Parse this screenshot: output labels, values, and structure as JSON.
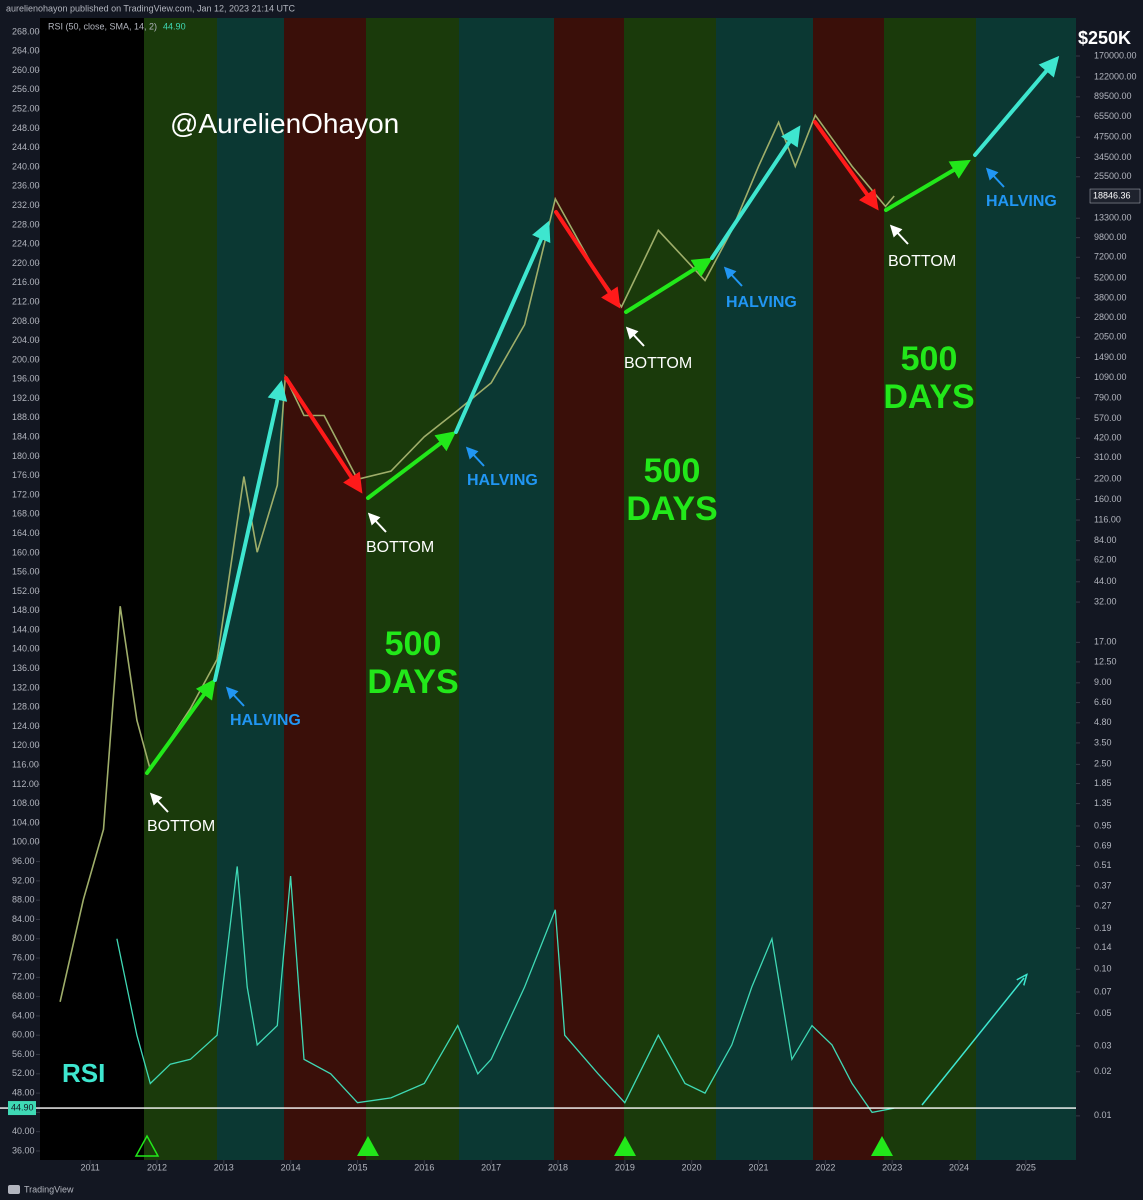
{
  "header": {
    "publisher": "aurelienohayon published on TradingView.com, Jan 12, 2023 21:14 UTC",
    "footer": "TradingView"
  },
  "chart_data": {
    "type": "line",
    "title": "@AurelienOhayon",
    "annotations": {
      "target": "$250K",
      "halving": [
        "HALVING",
        "HALVING",
        "HALVING",
        "HALVING"
      ],
      "bottom": [
        "BOTTOM",
        "BOTTOM",
        "BOTTOM",
        "BOTTOM"
      ],
      "days": [
        "500\nDAYS",
        "500\nDAYS",
        "500\nDAYS"
      ],
      "rsi": "RSI"
    },
    "xlim": [
      2010.25,
      2025.75
    ],
    "xticks": [
      2011,
      2012,
      2013,
      2014,
      2015,
      2016,
      2017,
      2018,
      2019,
      2020,
      2021,
      2022,
      2023,
      2024,
      2025
    ],
    "ylim": [
      34.13,
      270.07
    ],
    "yticks": [
      {
        "value": 36,
        "label": "36.00"
      },
      {
        "value": 40,
        "label": "40.00"
      },
      {
        "value": 44,
        "label": "44.00"
      },
      {
        "value": 48,
        "label": "48.00"
      },
      {
        "value": 52,
        "label": "52.00"
      },
      {
        "value": 56,
        "label": "56.00"
      },
      {
        "value": 60,
        "label": "60.00"
      },
      {
        "value": 64,
        "label": "64.00"
      },
      {
        "value": 68,
        "label": "68.00"
      },
      {
        "value": 72,
        "label": "72.00"
      },
      {
        "value": 76,
        "label": "76.00"
      },
      {
        "value": 80,
        "label": "80.00"
      },
      {
        "value": 84,
        "label": "84.00"
      },
      {
        "value": 88,
        "label": "88.00"
      },
      {
        "value": 92,
        "label": "92.00"
      },
      {
        "value": 96,
        "label": "96.00"
      },
      {
        "value": 100,
        "label": "100.00"
      },
      {
        "value": 104,
        "label": "104.00"
      },
      {
        "value": 108,
        "label": "108.00"
      },
      {
        "value": 112,
        "label": "112.00"
      },
      {
        "value": 116,
        "label": "116.00"
      },
      {
        "value": 120,
        "label": "120.00"
      },
      {
        "value": 124,
        "label": "124.00"
      },
      {
        "value": 128,
        "label": "128.00"
      },
      {
        "value": 132,
        "label": "132.00"
      },
      {
        "value": 136,
        "label": "136.00"
      },
      {
        "value": 140,
        "label": "140.00"
      },
      {
        "value": 144,
        "label": "144.00"
      },
      {
        "value": 148,
        "label": "148.00"
      },
      {
        "value": 152,
        "label": "152.00"
      },
      {
        "value": 156,
        "label": "156.00"
      },
      {
        "value": 160,
        "label": "160.00"
      },
      {
        "value": 164,
        "label": "164.00"
      },
      {
        "value": 168,
        "label": "168.00"
      },
      {
        "value": 172,
        "label": "172.00"
      },
      {
        "value": 176,
        "label": "176.00"
      },
      {
        "value": 180,
        "label": "180.00"
      },
      {
        "value": 184,
        "label": "184.00"
      },
      {
        "value": 188,
        "label": "188.00"
      },
      {
        "value": 192,
        "label": "192.00"
      },
      {
        "value": 196,
        "label": "196.00"
      },
      {
        "value": 200,
        "label": "200.00"
      },
      {
        "value": 204,
        "label": "204.00"
      },
      {
        "value": 208,
        "label": "208.00"
      },
      {
        "value": 212,
        "label": "212.00"
      },
      {
        "value": 216,
        "label": "216.00"
      },
      {
        "value": 220,
        "label": "220.00"
      },
      {
        "value": 224,
        "label": "224.00"
      },
      {
        "value": 228,
        "label": "228.00"
      },
      {
        "value": 232,
        "label": "232.00"
      },
      {
        "value": 236,
        "label": "236.00"
      },
      {
        "value": 240,
        "label": "240.00"
      },
      {
        "value": 244,
        "label": "244.00"
      },
      {
        "value": 248,
        "label": "248.00"
      },
      {
        "value": 252,
        "label": "252.00"
      },
      {
        "value": 256,
        "label": "256.00"
      },
      {
        "value": 260,
        "label": "260.00"
      },
      {
        "value": 264,
        "label": "264.00"
      },
      {
        "value": 268,
        "label": "268.00"
      }
    ],
    "y2_log": true,
    "y2lim": [
      0.005,
      290000
    ],
    "y2ticks": [
      {
        "value": 170000,
        "label": "170000.00"
      },
      {
        "value": 122000,
        "label": "122000.00"
      },
      {
        "value": 89500,
        "label": "89500.00"
      },
      {
        "value": 65500,
        "label": "65500.00"
      },
      {
        "value": 47500,
        "label": "47500.00"
      },
      {
        "value": 34500,
        "label": "34500.00"
      },
      {
        "value": 25500,
        "label": "25500.00"
      },
      {
        "value": 13300,
        "label": "13300.00"
      },
      {
        "value": 9800,
        "label": "9800.00"
      },
      {
        "value": 7200,
        "label": "7200.00"
      },
      {
        "value": 5200,
        "label": "5200.00"
      },
      {
        "value": 3800,
        "label": "3800.00"
      },
      {
        "value": 2800,
        "label": "2800.00"
      },
      {
        "value": 2050,
        "label": "2050.00"
      },
      {
        "value": 1490,
        "label": "1490.00"
      },
      {
        "value": 1090,
        "label": "1090.00"
      },
      {
        "value": 790,
        "label": "790.00"
      },
      {
        "value": 570,
        "label": "570.00"
      },
      {
        "value": 420,
        "label": "420.00"
      },
      {
        "value": 310,
        "label": "310.00"
      },
      {
        "value": 220,
        "label": "220.00"
      },
      {
        "value": 160,
        "label": "160.00"
      },
      {
        "value": 116,
        "label": "116.00"
      },
      {
        "value": 84,
        "label": "84.00"
      },
      {
        "value": 62,
        "label": "62.00"
      },
      {
        "value": 44,
        "label": "44.00"
      },
      {
        "value": 32,
        "label": "32.00"
      },
      {
        "value": 17,
        "label": "17.00"
      },
      {
        "value": 12.5,
        "label": "12.50"
      },
      {
        "value": 9,
        "label": "9.00"
      },
      {
        "value": 6.6,
        "label": "6.60"
      },
      {
        "value": 4.8,
        "label": "4.80"
      },
      {
        "value": 3.5,
        "label": "3.50"
      },
      {
        "value": 2.5,
        "label": "2.50"
      },
      {
        "value": 1.85,
        "label": "1.85"
      },
      {
        "value": 1.35,
        "label": "1.35"
      },
      {
        "value": 0.95,
        "label": "0.95"
      },
      {
        "value": 0.69,
        "label": "0.69"
      },
      {
        "value": 0.51,
        "label": "0.51"
      },
      {
        "value": 0.37,
        "label": "0.37"
      },
      {
        "value": 0.27,
        "label": "0.27"
      },
      {
        "value": 0.19,
        "label": "0.19"
      },
      {
        "value": 0.14,
        "label": "0.14"
      },
      {
        "value": 0.1,
        "label": "0.10"
      },
      {
        "value": 0.07,
        "label": "0.07"
      },
      {
        "value": 0.05,
        "label": "0.05"
      },
      {
        "value": 0.03,
        "label": "0.03"
      },
      {
        "value": 0.02,
        "label": "0.02"
      },
      {
        "value": 0.01,
        "label": "0.01"
      }
    ],
    "series": [
      {
        "color": "#9fae6a",
        "axis": "y2",
        "x": [
          2010.55,
          2010.9,
          2011.2,
          2011.45,
          2011.7,
          2011.9,
          2012.5,
          2012.9,
          2013.3,
          2013.5,
          2013.8,
          2013.92,
          2014.2,
          2014.5,
          2015.0,
          2015.5,
          2016.0,
          2016.5,
          2017.0,
          2017.5,
          2017.96,
          2018.5,
          2018.95,
          2019.5,
          2020.2,
          2020.6,
          2021.0,
          2021.3,
          2021.55,
          2021.85,
          2022.4,
          2022.9,
          2023.03
        ],
        "values": [
          0.06,
          0.3,
          0.9,
          30,
          5,
          2.3,
          6,
          13,
          230,
          70,
          200,
          1100,
          600,
          600,
          220,
          250,
          430,
          650,
          1000,
          2500,
          18000,
          6500,
          3300,
          11000,
          5000,
          11000,
          30000,
          60000,
          30000,
          67000,
          30000,
          16000,
          18846.36
        ]
      },
      {
        "name": "RSI (50, close, SMA, 14, 2)",
        "color": "#3fd9b5",
        "x": [
          2011.4,
          2011.55,
          2011.7,
          2011.9,
          2012.2,
          2012.5,
          2012.9,
          2013.2,
          2013.35,
          2013.5,
          2013.8,
          2014.0,
          2014.2,
          2014.6,
          2015.0,
          2015.5,
          2016.0,
          2016.5,
          2016.8,
          2017.0,
          2017.5,
          2017.96,
          2018.1,
          2018.6,
          2019.0,
          2019.5,
          2019.9,
          2020.2,
          2020.6,
          2020.9,
          2021.2,
          2021.5,
          2021.8,
          2022.1,
          2022.4,
          2022.7,
          2023.03
        ],
        "values": [
          80,
          70,
          60,
          50,
          54,
          55,
          60,
          95,
          70,
          58,
          62,
          93,
          55,
          52,
          46,
          47,
          50,
          62,
          52,
          55,
          70,
          86,
          60,
          52,
          46,
          60,
          50,
          48,
          58,
          70,
          80,
          55,
          62,
          58,
          50,
          44,
          44.9
        ]
      }
    ],
    "rsi_last_label": "44.90"
  }
}
